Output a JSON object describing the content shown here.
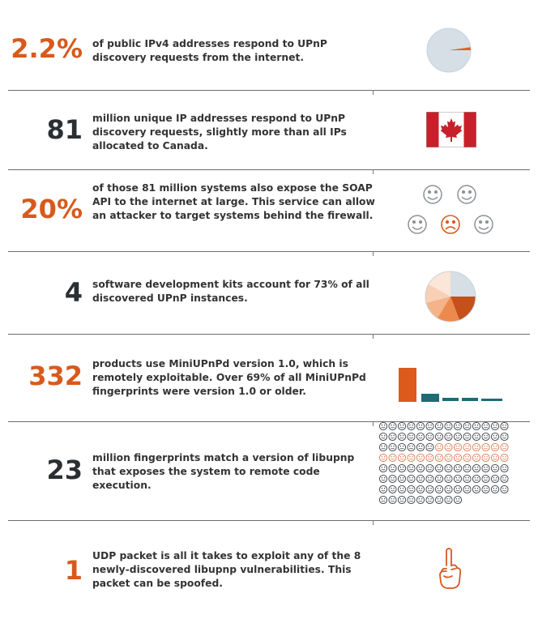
{
  "rows": [
    {
      "stat": "2.2%",
      "text": "of public IPv4 addresses respond to UPnP discovery requests from the internet.",
      "icon": "pie-slice-icon"
    },
    {
      "stat": "81",
      "text": "million unique IP addresses respond to UPnP discovery requests, slightly more than all IPs allocated to Canada.",
      "icon": "canada-flag-icon"
    },
    {
      "stat": "20%",
      "text": "of those 81 million systems also expose the SOAP API to the internet at large. This service can allow an attacker to target systems behind the firewall.",
      "icon": "smiley-faces-icon"
    },
    {
      "stat": "4",
      "text": "software development kits account for 73% of all discovered UPnP instances.",
      "icon": "pie-chart-icon"
    },
    {
      "stat": "332",
      "text": "products use MiniUPnPd version 1.0, which is remotely exploitable. Over 69% of all MiniUPnPd fingerprints were version 1.0 or older.",
      "icon": "bar-chart-icon"
    },
    {
      "stat": "23",
      "text": "million fingerprints match a version of libupnp that exposes the system to remote code execution.",
      "icon": "face-grid-icon"
    },
    {
      "stat": "1",
      "text": "UDP packet is all it takes to exploit any of the 8 newly-discovered libupnp vulnerabilities. This packet can be spoofed.",
      "icon": "raised-finger-icon"
    }
  ],
  "colors": {
    "orange": "#d75a1c",
    "dark": "#2b2f33",
    "teal": "#1f6b74",
    "gray": "#9aa0a6",
    "pie_base": "#d6dfe6"
  }
}
